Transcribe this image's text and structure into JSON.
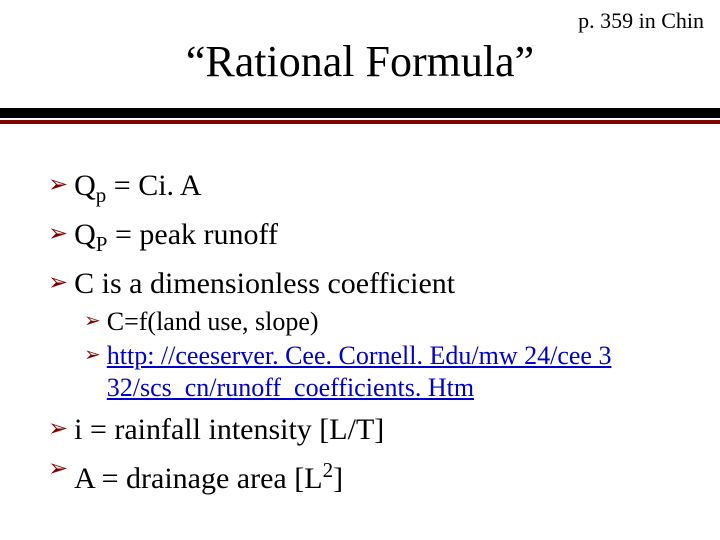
{
  "page_ref": "p. 359 in Chin",
  "title": "“Rational Formula”",
  "colors": {
    "bullet": "#800000",
    "rule_top": "#000000",
    "rule_bottom": "#800000",
    "link": "#0000cc",
    "text": "#000000",
    "background": "#ffffff"
  },
  "bullets": {
    "glyph": "➢"
  },
  "items": [
    {
      "level": 1,
      "prefix": "Q",
      "sub": "p",
      "rest": " = Ci. A"
    },
    {
      "level": 1,
      "prefix": "Q",
      "sub": "P",
      "rest": " = peak runoff"
    },
    {
      "level": 1,
      "text": "C is a dimensionless coefficient"
    },
    {
      "level": 2,
      "text": "C=f(land use, slope)"
    },
    {
      "level": 2,
      "link_line1": "http: //ceeserver. Cee. Cornell. Edu/mw 24/cee 3",
      "link_line2": "32/scs_cn/runoff_coefficients. Htm"
    },
    {
      "level": 1,
      "text": "i = rainfall intensity [L/T]"
    },
    {
      "level": 1,
      "prefix": "A = drainage area [L",
      "sup": "2",
      "rest": "]"
    }
  ]
}
